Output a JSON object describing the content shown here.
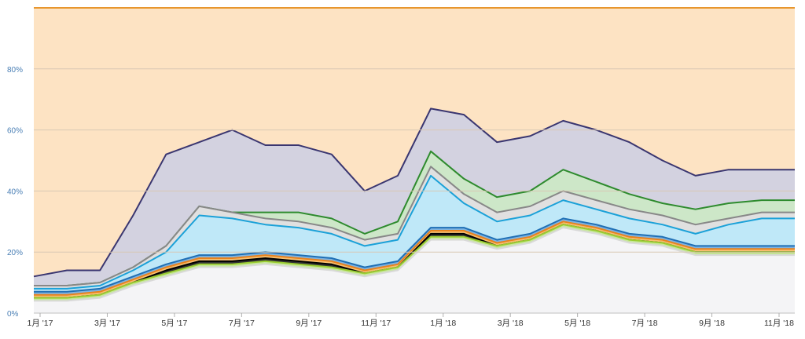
{
  "chart_data": {
    "type": "area",
    "stacking": "percent",
    "title": "",
    "xlabel": "",
    "ylabel": "",
    "ylim": [
      0,
      100
    ],
    "x_ticks": [
      "1月 '17",
      "3月 '17",
      "5月 '17",
      "7月 '17",
      "9月 '17",
      "11月 '17",
      "1月 '18",
      "3月 '18",
      "5月 '18",
      "7月 '18",
      "9月 '18",
      "11月 '18"
    ],
    "y_ticks": [
      "0%",
      "20%",
      "40%",
      "60%",
      "80%"
    ],
    "y_tick_values": [
      0,
      20,
      40,
      60,
      80
    ],
    "x_time": [
      "2017-01",
      "2017-02",
      "2017-03",
      "2017-04",
      "2017-05",
      "2017-06",
      "2017-07",
      "2017-08",
      "2017-09",
      "2017-10",
      "2017-11",
      "2017-12",
      "2018-01",
      "2018-02",
      "2018-03",
      "2018-04",
      "2018-05",
      "2018-06",
      "2018-07",
      "2018-08",
      "2018-09",
      "2018-10",
      "2018-11",
      "2018-12"
    ],
    "x_positions": [
      0,
      1,
      2,
      3,
      4,
      5,
      6,
      7,
      8,
      9,
      10,
      11,
      12,
      13,
      14,
      15,
      16,
      17,
      18,
      19,
      20,
      21,
      22,
      23
    ],
    "bands_cumulative": [
      {
        "name": "base",
        "color": "#f4f4f6",
        "line": "#d9d9d9",
        "values": [
          4,
          4,
          5,
          9,
          12,
          15,
          15,
          16,
          15,
          14,
          12,
          14,
          24,
          24,
          21,
          23,
          28,
          26,
          23,
          22,
          19,
          19,
          19,
          19
        ]
      },
      {
        "name": "series-green-light",
        "color": "#c8e6a0",
        "line": "#9acd32",
        "values": [
          5,
          5,
          6,
          10,
          13,
          16,
          16,
          17,
          16,
          15,
          13,
          15,
          25,
          25,
          22,
          24,
          29,
          27,
          24,
          23,
          20,
          20,
          20,
          20
        ]
      },
      {
        "name": "series-black",
        "color": "#333333",
        "line": "#000000",
        "values": [
          5,
          5,
          6,
          10,
          14,
          17,
          17,
          18,
          17,
          16,
          13,
          15,
          26,
          26,
          22,
          24,
          29,
          27,
          24,
          23,
          20,
          20,
          20,
          20
        ]
      },
      {
        "name": "series-orange",
        "color": "#f8c070",
        "line": "#e8821e",
        "values": [
          6,
          6,
          7,
          11,
          15,
          18,
          18,
          19,
          18,
          17,
          14,
          16,
          27,
          27,
          23,
          25,
          30,
          28,
          25,
          24,
          21,
          21,
          21,
          21
        ]
      },
      {
        "name": "series-blue-dark",
        "color": "#7fb3e0",
        "line": "#1f6fb5",
        "values": [
          7,
          7,
          8,
          12,
          16,
          19,
          19,
          20,
          19,
          18,
          15,
          17,
          28,
          28,
          24,
          26,
          31,
          29,
          26,
          25,
          22,
          22,
          22,
          22
        ]
      },
      {
        "name": "series-cyan",
        "color": "#bfe8f8",
        "line": "#1ba1d8",
        "values": [
          8,
          8,
          9,
          14,
          20,
          32,
          31,
          29,
          28,
          26,
          22,
          24,
          45,
          36,
          30,
          32,
          37,
          34,
          31,
          29,
          26,
          29,
          31,
          31
        ]
      },
      {
        "name": "series-grey",
        "color": "#e0e0e0",
        "line": "#888888",
        "values": [
          9,
          9,
          10,
          15,
          22,
          35,
          33,
          31,
          30,
          28,
          24,
          26,
          48,
          39,
          33,
          35,
          40,
          37,
          34,
          32,
          29,
          31,
          33,
          33
        ]
      },
      {
        "name": "series-green",
        "color": "#cde7c8",
        "line": "#2e8b2e",
        "values": [
          9,
          9,
          10,
          15,
          22,
          35,
          33,
          33,
          33,
          31,
          26,
          30,
          53,
          44,
          38,
          40,
          47,
          43,
          39,
          36,
          34,
          36,
          37,
          37
        ]
      },
      {
        "name": "series-navy",
        "color": "#d3d2e0",
        "line": "#3a3670",
        "values": [
          12,
          14,
          14,
          32,
          52,
          56,
          60,
          55,
          55,
          52,
          40,
          45,
          67,
          65,
          56,
          58,
          63,
          60,
          56,
          50,
          45,
          47,
          47,
          47
        ]
      },
      {
        "name": "series-peach",
        "color": "#fde3c3",
        "line": "#e8962e",
        "values": [
          100,
          100,
          100,
          100,
          100,
          100,
          100,
          100,
          100,
          100,
          100,
          100,
          100,
          100,
          100,
          100,
          100,
          100,
          100,
          100,
          100,
          100,
          100,
          100
        ]
      }
    ]
  }
}
